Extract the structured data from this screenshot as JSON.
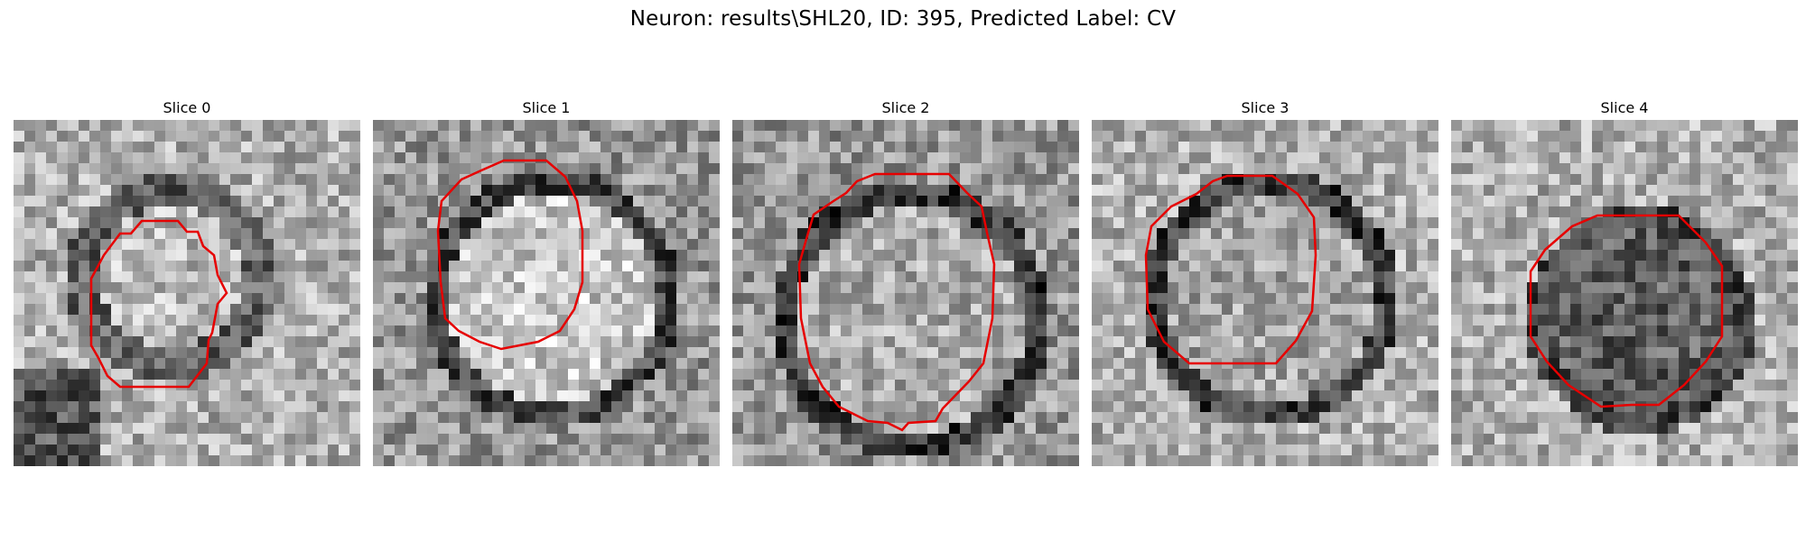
{
  "title": "Neuron: results\\SHL20, ID: 395, Predicted Label: CV",
  "panels": [
    {
      "label": "Slice 0"
    },
    {
      "label": "Slice 1"
    },
    {
      "label": "Slice 2"
    },
    {
      "label": "Slice 3"
    },
    {
      "label": "Slice 4"
    }
  ],
  "contour_color": "#e60000"
}
